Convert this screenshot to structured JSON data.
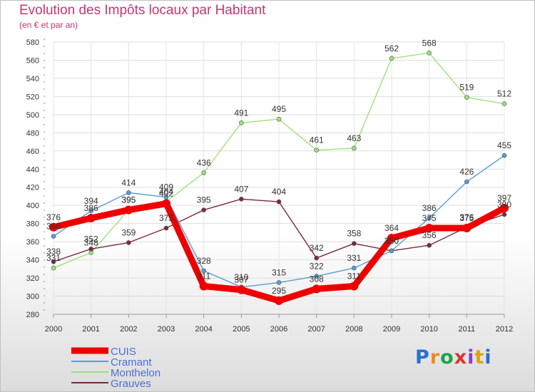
{
  "title": "Evolution des Impôts locaux par Habitant",
  "subtitle": "(en € et par an)",
  "logo": {
    "letters": [
      "P",
      "r",
      "o",
      "x",
      "i",
      "t",
      "i"
    ],
    "colors": [
      "#2a6fd0",
      "#f08a1c",
      "#1aa34a",
      "#e03131",
      "#8a3fc4",
      "#e0a20c",
      "#2a6fd0"
    ]
  },
  "chart_data": {
    "type": "line",
    "x": [
      "2000",
      "2001",
      "2002",
      "2003",
      "2004",
      "2005",
      "2006",
      "2007",
      "2008",
      "2009",
      "2010",
      "2011",
      "2012"
    ],
    "ylim": [
      280,
      580
    ],
    "yticks": [
      280,
      300,
      320,
      340,
      360,
      380,
      400,
      420,
      440,
      460,
      480,
      500,
      520,
      540,
      560,
      580
    ],
    "grid": true,
    "legend_position": "bottom-left",
    "series": [
      {
        "name": "CUIS",
        "color": "#ee0000",
        "values": [
          376,
          386,
          395,
          402,
          311,
          307,
          295,
          308,
          311,
          364,
          375,
          375,
          397
        ]
      },
      {
        "name": "Cramant",
        "color": "#5a9bd5",
        "values": [
          366,
          394,
          414,
          409,
          328,
          310,
          315,
          322,
          331,
          350,
          386,
          426,
          455
        ]
      },
      {
        "name": "Monthelon",
        "color": "#9ee07c",
        "values": [
          331,
          348,
          395,
          404,
          436,
          491,
          495,
          461,
          463,
          562,
          568,
          519,
          512
        ]
      },
      {
        "name": "Grauves",
        "color": "#7a2a3a",
        "values": [
          338,
          352,
          359,
          375,
          395,
          407,
          404,
          342,
          358,
          350,
          356,
          376,
          390
        ]
      }
    ]
  }
}
